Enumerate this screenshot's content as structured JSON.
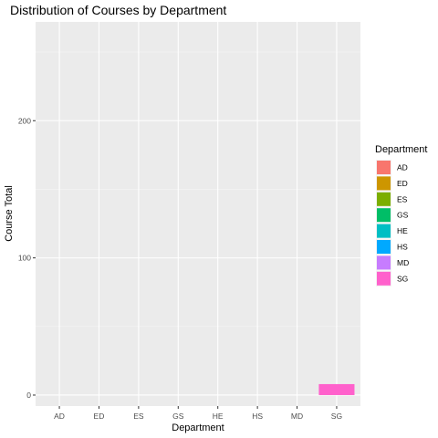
{
  "chart_data": {
    "type": "bar",
    "title": "Distribution of Courses by Department",
    "xlabel": "Department",
    "ylabel": "Course Total",
    "categories": [
      "AD",
      "ED",
      "ES",
      "GS",
      "HE",
      "HS",
      "MD",
      "SG"
    ],
    "values": [
      0,
      0,
      0,
      0,
      0,
      0,
      0,
      8
    ],
    "colors": [
      "#F8766D",
      "#CD9600",
      "#7CAE00",
      "#00BE67",
      "#00BFC4",
      "#00A9FF",
      "#C77CFF",
      "#FF61CC"
    ],
    "yticks": [
      0,
      100,
      200
    ],
    "ylim": [
      -8,
      272
    ],
    "grid": true,
    "legend": {
      "title": "Department",
      "position": "right",
      "entries": [
        "AD",
        "ED",
        "ES",
        "GS",
        "HE",
        "HS",
        "MD",
        "SG"
      ]
    }
  }
}
